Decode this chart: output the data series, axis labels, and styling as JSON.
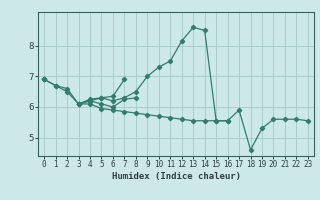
{
  "xlabel": "Humidex (Indice chaleur)",
  "background_color": "#cce8e8",
  "grid_color": "#aacccc",
  "line_color": "#2e7d6e",
  "x_values": [
    0,
    1,
    2,
    3,
    4,
    5,
    6,
    7,
    8,
    9,
    10,
    11,
    12,
    13,
    14,
    15,
    16,
    17,
    18,
    19,
    20,
    21,
    22,
    23
  ],
  "lines": [
    [
      6.9,
      6.7,
      6.6,
      6.1,
      6.2,
      6.3,
      6.2,
      6.3,
      6.5,
      7.0,
      7.3,
      7.5,
      8.15,
      8.6,
      8.5,
      5.55,
      5.55,
      5.9,
      4.6,
      5.3,
      5.6,
      5.6,
      5.6,
      5.55
    ],
    [
      6.9,
      6.7,
      6.5,
      6.1,
      6.2,
      6.1,
      6.0,
      6.25,
      6.3,
      null,
      null,
      null,
      null,
      null,
      null,
      null,
      null,
      null,
      null,
      null,
      null,
      null,
      null,
      null
    ],
    [
      6.9,
      null,
      null,
      6.1,
      6.25,
      6.3,
      6.35,
      6.9,
      null,
      null,
      null,
      null,
      null,
      null,
      null,
      null,
      null,
      null,
      null,
      null,
      null,
      null,
      null,
      null
    ],
    [
      6.9,
      null,
      null,
      6.1,
      6.1,
      5.95,
      5.9,
      5.85,
      5.8,
      5.75,
      5.7,
      5.65,
      5.6,
      5.55,
      5.55,
      5.55,
      5.55,
      null,
      null,
      null,
      null,
      null,
      null,
      null
    ]
  ],
  "ylim": [
    4.4,
    9.1
  ],
  "xlim": [
    -0.5,
    23.5
  ],
  "yticks": [
    5,
    6,
    7,
    8
  ],
  "xticks": [
    0,
    1,
    2,
    3,
    4,
    5,
    6,
    7,
    8,
    9,
    10,
    11,
    12,
    13,
    14,
    15,
    16,
    17,
    18,
    19,
    20,
    21,
    22,
    23
  ],
  "xlabel_fontsize": 6.5,
  "tick_fontsize": 5.5
}
